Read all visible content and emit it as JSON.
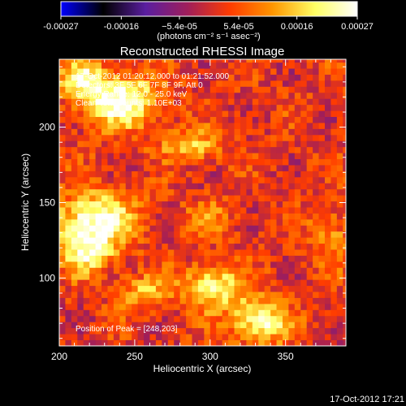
{
  "chart_data": {
    "type": "heatmap",
    "title": "Reconstructed RHESSI Image",
    "xlabel": "Heliocentric X (arcsec)",
    "ylabel": "Heliocentric Y (arcsec)",
    "xlim": [
      200,
      390
    ],
    "ylim": [
      55,
      245
    ],
    "x_ticks": [
      200,
      250,
      300,
      350
    ],
    "x_tick_labels": [
      "200",
      "250",
      "300",
      "350"
    ],
    "y_ticks": [
      100,
      150,
      200
    ],
    "y_tick_labels": [
      "100",
      "150",
      "200"
    ],
    "colorbar": {
      "range": [
        -0.00027,
        0.00027
      ],
      "ticks": [
        -0.00027,
        -0.00016,
        -5.4e-05,
        5.4e-05,
        0.00016,
        0.00027
      ],
      "tick_labels": [
        "-0.00027",
        "-0.00016",
        "−5.4e-05",
        "5.4e-05",
        "0.00016",
        "0.00027"
      ],
      "unit_label": "(photons cm⁻² s⁻¹ asec⁻²)",
      "colors": [
        "#0000ff",
        "#000000",
        "#5a1ea0",
        "#a01e5a",
        "#ff3c00",
        "#ff9600",
        "#ffff64",
        "#ffffff"
      ]
    },
    "annotations": [
      "17-Oct-2012 01:20:12.000 to 01:21:52.000",
      "Detectors: 3F 5F 6F 7F 8F 9F, Att 0",
      "Energy Range: 12.0 - 25.0 keV",
      "Clean    Total counts: 1.10E+03"
    ],
    "peak_label": "Position of Peak = [248,203]",
    "peak": [
      248,
      203
    ],
    "grid": false,
    "pixel_size_arcsec": 4,
    "blobs": [
      {
        "x": 240,
        "y": 218,
        "value": 0.00026,
        "sx": 18,
        "sy": 12
      },
      {
        "x": 215,
        "y": 232,
        "value": 0.00018,
        "sx": 10,
        "sy": 8
      },
      {
        "x": 287,
        "y": 188,
        "value": 0.00014,
        "sx": 14,
        "sy": 7
      },
      {
        "x": 224,
        "y": 140,
        "value": 0.00024,
        "sx": 18,
        "sy": 12
      },
      {
        "x": 218,
        "y": 118,
        "value": 0.0002,
        "sx": 13,
        "sy": 10
      },
      {
        "x": 302,
        "y": 94,
        "value": 0.0002,
        "sx": 15,
        "sy": 10
      },
      {
        "x": 333,
        "y": 71,
        "value": 0.00022,
        "sx": 13,
        "sy": 10
      },
      {
        "x": 256,
        "y": 91,
        "value": 0.00012,
        "sx": 12,
        "sy": 8
      },
      {
        "x": 380,
        "y": 128,
        "value": 0.0001,
        "sx": 10,
        "sy": 12
      },
      {
        "x": 300,
        "y": 140,
        "value": 8e-05,
        "sx": 12,
        "sy": 8
      }
    ]
  },
  "timestamp": "17-Oct-2012 17:21"
}
